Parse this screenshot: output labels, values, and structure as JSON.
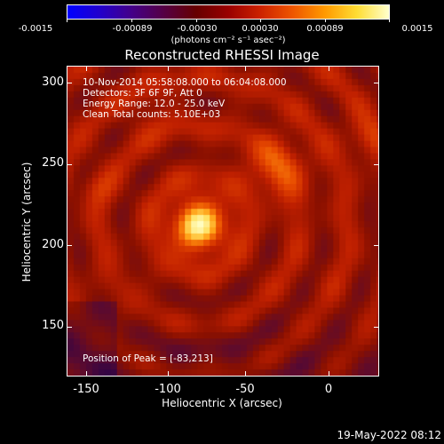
{
  "colorbar": {
    "ticks": [
      "-0.0015",
      "-0.00089",
      "-0.00030",
      "0.00030",
      "0.00089",
      "0.0015"
    ],
    "units": "(photons cm⁻² s⁻¹ asec⁻²)"
  },
  "title": "Reconstructed RHESSI Image",
  "info": {
    "time": "10-Nov-2014 05:58:08.000 to 06:04:08.000",
    "detectors": "Detectors: 3F 6F 9F, Att 0",
    "energy": "Energy Range: 12.0 - 25.0 keV",
    "clean": "Clean    Total counts: 5.10E+03",
    "peak": "Position of Peak = [-83,213]"
  },
  "axes": {
    "x_ticks": [
      "-150",
      "-100",
      "-50",
      "0"
    ],
    "y_ticks": [
      "300",
      "250",
      "200",
      "150"
    ],
    "xlabel": "Heliocentric X (arcsec)",
    "ylabel": "Heliocentric Y (arcsec)",
    "xlim": [
      -162,
      30
    ],
    "ylim": [
      118,
      310
    ]
  },
  "image": {
    "peak_x": -83,
    "peak_y": 213,
    "cmap_colors": [
      "#1a0050",
      "#5a0a30",
      "#8a1000",
      "#c02000",
      "#e84a00",
      "#ff9a10",
      "#ffe060",
      "#ffffcc"
    ]
  },
  "footer": {
    "date": "19-May-2022 08:12"
  }
}
